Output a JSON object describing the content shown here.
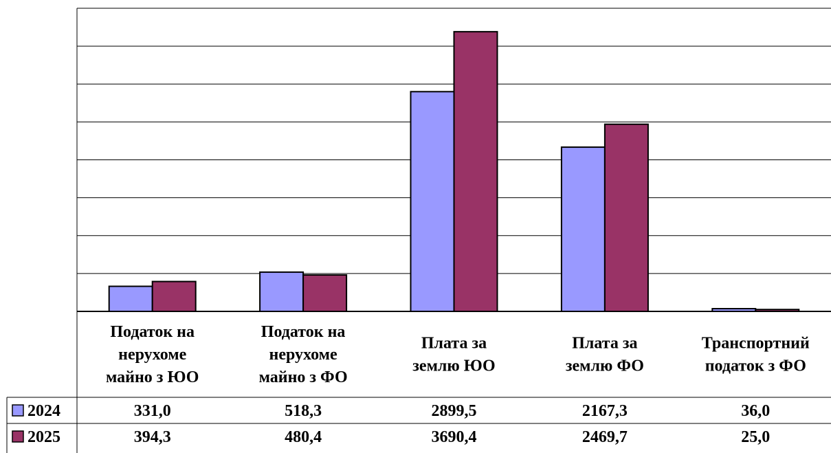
{
  "chart_data": {
    "type": "bar",
    "categories": [
      [
        "Податок на",
        "нерухоме",
        "майно з ЮО"
      ],
      [
        "Податок на",
        "нерухоме",
        "майно з ФО"
      ],
      [
        "Плата за",
        "землю ЮО"
      ],
      [
        "Плата за",
        "землю ФО"
      ],
      [
        "Транспортний",
        "податок з ФО"
      ]
    ],
    "series": [
      {
        "name": "2024",
        "color": "#9999ff",
        "values": [
          331.0,
          518.3,
          2899.5,
          2167.3,
          36.0
        ],
        "labels": [
          "331,0",
          "518,3",
          "2899,5",
          "2167,3",
          "36,0"
        ]
      },
      {
        "name": "2025",
        "color": "#993366",
        "values": [
          394.3,
          480.4,
          3690.4,
          2469.7,
          25.0
        ],
        "labels": [
          "394,3",
          "480,4",
          "3690,4",
          "2469,7",
          "25,0"
        ]
      }
    ],
    "ylim": [
      0,
      4000
    ],
    "gridlines": true,
    "legend": "data-table-left",
    "title": "",
    "xlabel": "",
    "ylabel": ""
  }
}
